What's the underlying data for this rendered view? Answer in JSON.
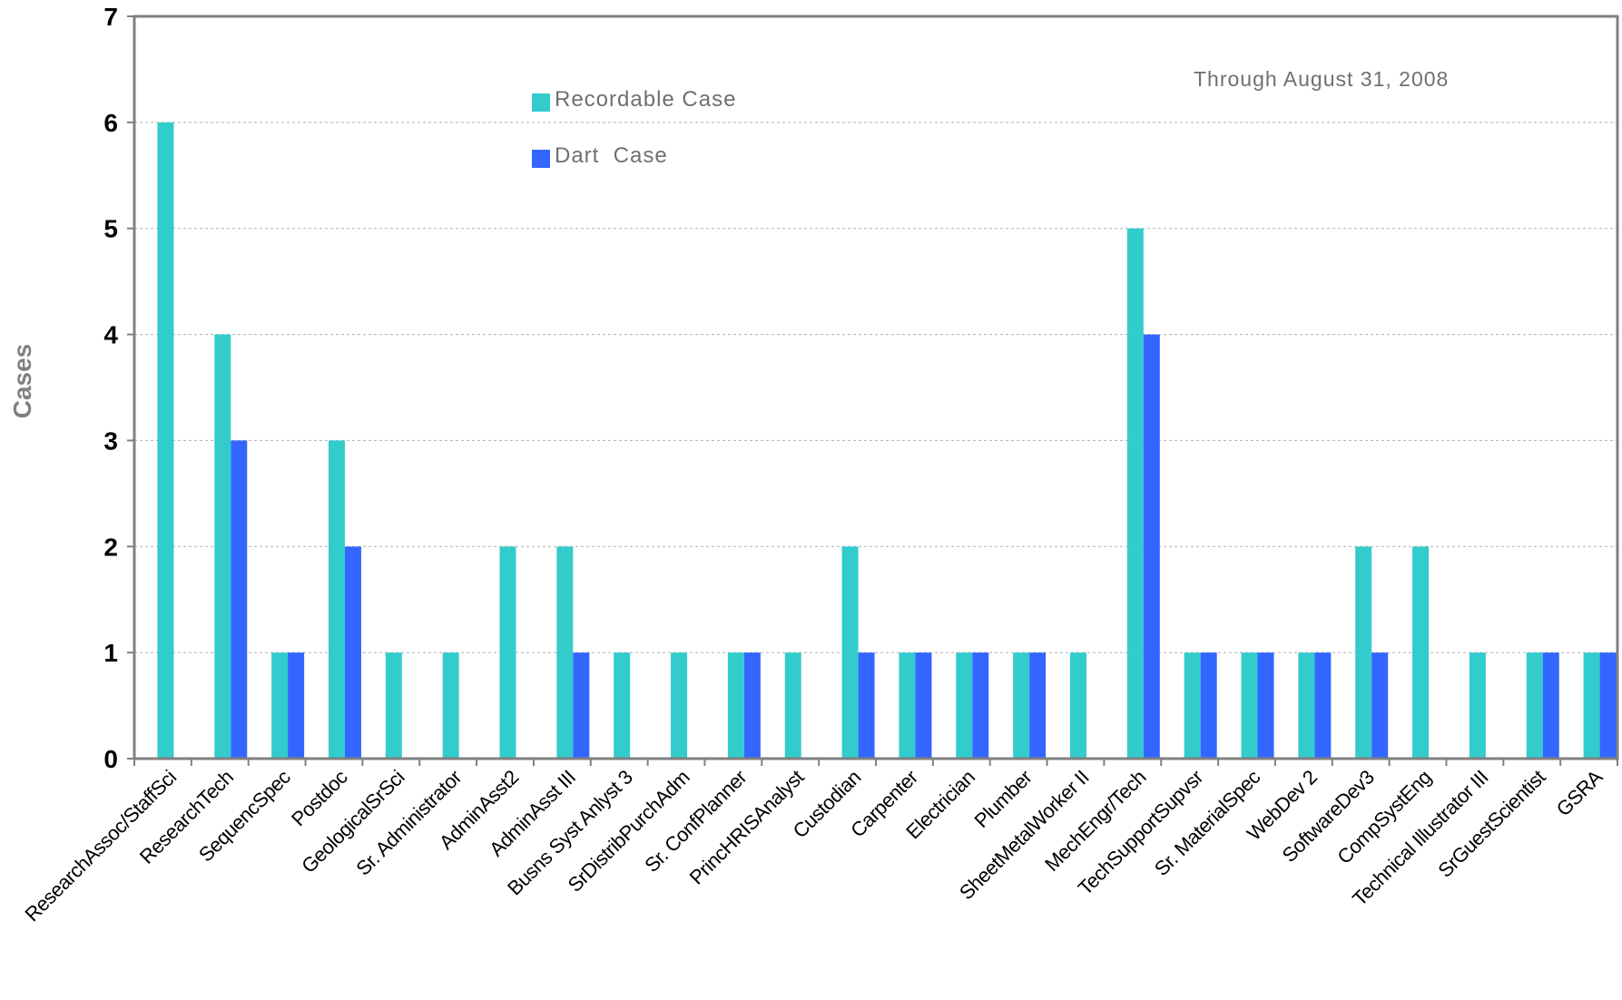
{
  "chart_data": {
    "type": "bar",
    "title": "",
    "xlabel": "",
    "ylabel": "Cases",
    "ylim": [
      0,
      7
    ],
    "yticks": [
      "0",
      "1",
      "2",
      "3",
      "4",
      "5",
      "6",
      "7"
    ],
    "grid": "horizontal dashed",
    "legend_position": "top-left",
    "annotation": "Through August 31, 2008",
    "categories": [
      "ResearchAssoc/StaffSci",
      "ResearchTech",
      "SequencSpec",
      "Postdoc",
      "GeologicalSrSci",
      "Sr. Administrator",
      "AdminAsst2",
      "AdminAsst III",
      "Busns Syst Anlyst 3",
      "SrDistribPurchAdm",
      "Sr. ConfPlanner",
      "PrincHRISAnalyst",
      "Custodian",
      "Carpenter",
      "Electrician",
      "Plumber",
      "SheetMetalWorker II",
      "MechEngr/Tech",
      "TechSupportSupvsr",
      "Sr. MaterialSpec",
      "WebDev 2",
      "SoftwareDev3",
      "CompSystEng",
      "Technical Illustrator III",
      "SrGuestScientist",
      "GSRA"
    ],
    "series": [
      {
        "name": "Recordable Case",
        "color": "#33CCCC",
        "values": [
          6,
          4,
          1,
          3,
          1,
          1,
          2,
          2,
          1,
          1,
          1,
          1,
          2,
          1,
          1,
          1,
          1,
          5,
          1,
          1,
          1,
          2,
          2,
          1,
          1,
          1
        ]
      },
      {
        "name": "Dart  Case",
        "color": "#3366FF",
        "values": [
          0,
          3,
          1,
          2,
          0,
          0,
          0,
          1,
          0,
          0,
          1,
          0,
          1,
          1,
          1,
          1,
          0,
          4,
          1,
          1,
          1,
          1,
          0,
          0,
          1,
          1
        ]
      }
    ]
  }
}
